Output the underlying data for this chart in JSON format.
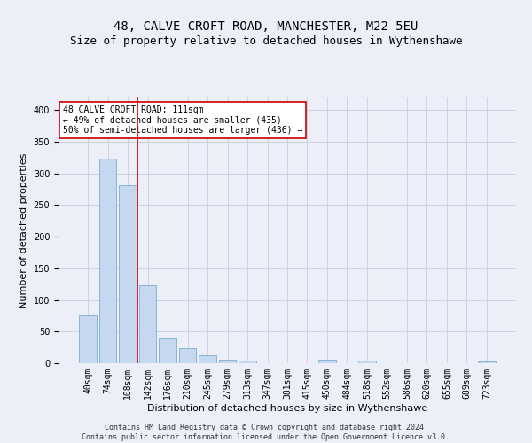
{
  "title": "48, CALVE CROFT ROAD, MANCHESTER, M22 5EU",
  "subtitle": "Size of property relative to detached houses in Wythenshawe",
  "xlabel": "Distribution of detached houses by size in Wythenshawe",
  "ylabel": "Number of detached properties",
  "footer_line1": "Contains HM Land Registry data © Crown copyright and database right 2024.",
  "footer_line2": "Contains public sector information licensed under the Open Government Licence v3.0.",
  "bar_labels": [
    "40sqm",
    "74sqm",
    "108sqm",
    "142sqm",
    "176sqm",
    "210sqm",
    "245sqm",
    "279sqm",
    "313sqm",
    "347sqm",
    "381sqm",
    "415sqm",
    "450sqm",
    "484sqm",
    "518sqm",
    "552sqm",
    "586sqm",
    "620sqm",
    "655sqm",
    "689sqm",
    "723sqm"
  ],
  "bar_values": [
    75,
    323,
    281,
    123,
    39,
    24,
    12,
    5,
    4,
    0,
    0,
    0,
    5,
    0,
    4,
    0,
    0,
    0,
    0,
    0,
    3
  ],
  "bar_color": "#c5d8ef",
  "bar_edge_color": "#7aadd4",
  "annotation_text": "48 CALVE CROFT ROAD: 111sqm\n← 49% of detached houses are smaller (435)\n50% of semi-detached houses are larger (436) →",
  "property_line_x": 2.5,
  "annotation_box_color": "#ffffff",
  "annotation_box_edge_color": "#cc0000",
  "property_line_color": "#cc0000",
  "grid_color": "#c8cce0",
  "background_color": "#eceef8",
  "ylim": [
    0,
    420
  ],
  "yticks": [
    0,
    50,
    100,
    150,
    200,
    250,
    300,
    350,
    400
  ],
  "title_fontsize": 10,
  "subtitle_fontsize": 9,
  "axis_label_fontsize": 8,
  "tick_fontsize": 7,
  "annotation_fontsize": 7,
  "footer_fontsize": 6
}
